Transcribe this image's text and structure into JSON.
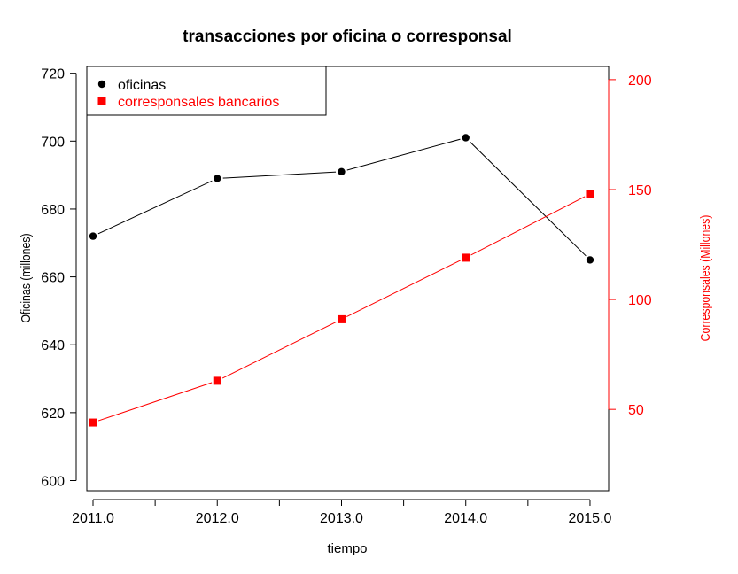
{
  "chart_data": {
    "type": "line",
    "title": "transacciones por oficina o corresponsal",
    "xlabel": "tiempo",
    "ylabel_left": "Oficinas (millones)",
    "ylabel_right": "Corresponsales (Millones)",
    "x": [
      2011,
      2012,
      2013,
      2014,
      2015
    ],
    "x_tick_labels": [
      "2011.0",
      "2012.0",
      "2013.0",
      "2014.0",
      "2015.0"
    ],
    "xlim": [
      2010.95,
      2015.15
    ],
    "ylim_left": [
      597,
      722
    ],
    "ylim_right": [
      13,
      206
    ],
    "y_ticks_left": [
      "600",
      "620",
      "640",
      "660",
      "680",
      "700",
      "720"
    ],
    "y_ticks_right": [
      "50",
      "100",
      "150",
      "200"
    ],
    "grid": false,
    "legend_position": "top-left",
    "series": [
      {
        "name": "oficinas",
        "axis": "left",
        "color": "#000000",
        "marker": "circle",
        "values": [
          672,
          689,
          691,
          701,
          665
        ]
      },
      {
        "name": "corresponsales bancarios",
        "axis": "right",
        "color": "#ff0000",
        "marker": "square",
        "values": [
          44,
          63,
          91,
          119,
          148
        ]
      }
    ]
  }
}
